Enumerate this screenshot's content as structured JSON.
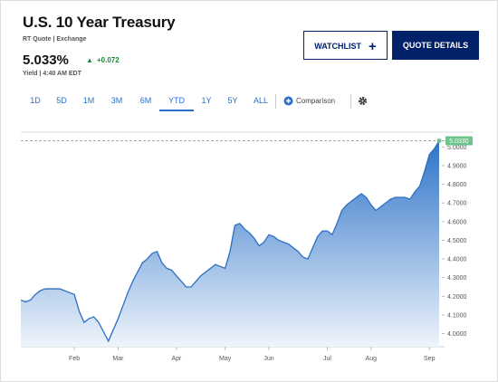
{
  "header": {
    "title": "U.S. 10 Year Treasury",
    "quote_source": "RT Quote | Exchange",
    "price": "5.033%",
    "change": "+0.072",
    "time": "Yield | 4:40 AM EDT"
  },
  "buttons": [
    "WATCHLIST",
    "QUOTE DETAILS"
  ],
  "tabs": [
    "1D",
    "5D",
    "1M",
    "3M",
    "6M",
    "YTD",
    "1Y",
    "5Y",
    "ALL"
  ],
  "selected_tab": 5,
  "comparison": "Comparison",
  "chart_data": {
    "type": "area",
    "color": "#2d6fc1",
    "categories": [
      null,
      null,
      null,
      null,
      null,
      null,
      null,
      null,
      null,
      null,
      null,
      "Feb",
      null,
      null,
      null,
      null,
      null,
      null,
      null,
      null,
      "Mar",
      null,
      null,
      null,
      null,
      null,
      null,
      null,
      null,
      null,
      null,
      null,
      "Apr",
      null,
      null,
      null,
      null,
      null,
      null,
      null,
      null,
      null,
      "May",
      null,
      null,
      null,
      null,
      null,
      null,
      null,
      null,
      "Jun",
      null,
      null,
      null,
      null,
      null,
      null,
      null,
      null,
      null,
      null,
      null,
      "Jul",
      null,
      null,
      null,
      null,
      null,
      null,
      null,
      null,
      "Aug",
      null,
      null,
      null,
      null,
      null,
      null,
      null,
      null,
      null,
      null,
      null,
      "Sep",
      null,
      null
    ],
    "values": [
      4.18,
      4.17,
      4.18,
      4.21,
      4.23,
      4.24,
      4.24,
      4.24,
      4.24,
      4.23,
      4.22,
      4.21,
      4.12,
      4.06,
      4.08,
      4.09,
      4.06,
      4.01,
      3.96,
      4.02,
      4.08,
      4.15,
      4.22,
      4.28,
      4.33,
      4.38,
      4.4,
      4.43,
      4.44,
      4.38,
      4.35,
      4.34,
      4.31,
      4.28,
      4.25,
      4.25,
      4.28,
      4.31,
      4.33,
      4.35,
      4.37,
      4.36,
      4.35,
      4.44,
      4.58,
      4.59,
      4.56,
      4.54,
      4.51,
      4.47,
      4.49,
      4.53,
      4.52,
      4.5,
      4.49,
      4.48,
      4.46,
      4.44,
      4.41,
      4.4,
      4.46,
      4.52,
      4.55,
      4.55,
      4.53,
      4.59,
      4.66,
      4.69,
      4.71,
      4.73,
      4.75,
      4.73,
      4.69,
      4.66,
      4.68,
      4.7,
      4.72,
      4.73,
      4.73,
      4.73,
      4.72,
      4.76,
      4.79,
      4.87,
      4.96,
      4.99,
      5.033
    ],
    "ylim": [
      3.93,
      5.055
    ],
    "yticks": [
      {
        "value": 4.0,
        "label": "4.0000"
      },
      {
        "value": 4.1,
        "label": "4.1000"
      },
      {
        "value": 4.2,
        "label": "4.2000"
      },
      {
        "value": 4.3,
        "label": "4.3000"
      },
      {
        "value": 4.4,
        "label": "4.4000"
      },
      {
        "value": 4.5,
        "label": "4.5000"
      },
      {
        "value": 4.6,
        "label": "4.6000"
      },
      {
        "value": 4.7,
        "label": "4.7000"
      },
      {
        "value": 4.8,
        "label": "4.8000"
      },
      {
        "value": 4.9,
        "label": "4.9000"
      },
      {
        "value": 5.0,
        "label": "5.0000"
      }
    ],
    "last_value": {
      "value": 5.033,
      "label": "5.0330"
    }
  }
}
